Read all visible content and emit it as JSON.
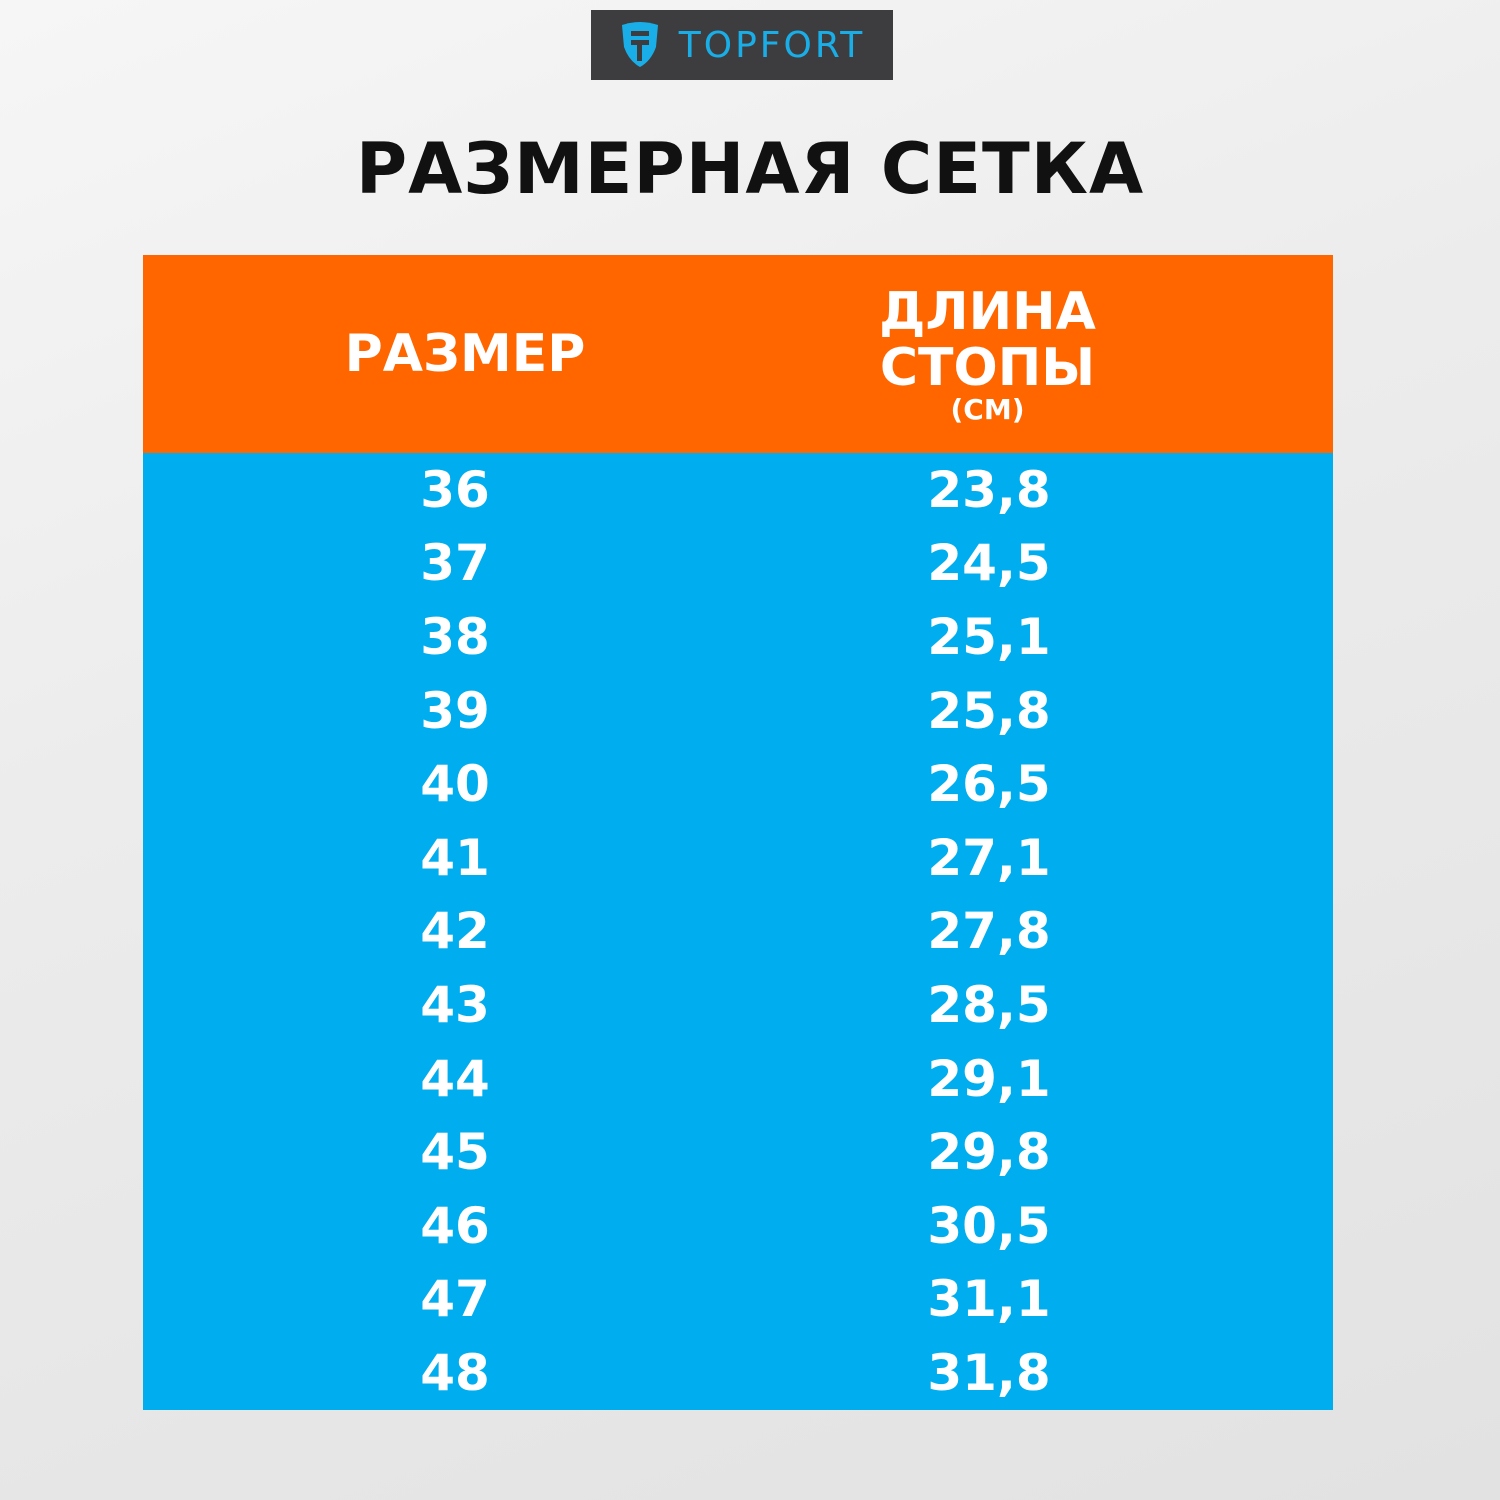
{
  "brand": {
    "name": "TOPFORT",
    "logo_bg": "#3d3d3f",
    "logo_color": "#1aaee8"
  },
  "title": "РАЗМЕРНАЯ СЕТКА",
  "table": {
    "header_color": "#ff6600",
    "body_color": "#00aeef",
    "headers": {
      "size": "РАЗМЕР",
      "length_line1": "ДЛИНА",
      "length_line2": "СТОПЫ",
      "length_unit": "(СМ)"
    },
    "rows": [
      {
        "size": "36",
        "length": "23,8"
      },
      {
        "size": "37",
        "length": "24,5"
      },
      {
        "size": "38",
        "length": "25,1"
      },
      {
        "size": "39",
        "length": "25,8"
      },
      {
        "size": "40",
        "length": "26,5"
      },
      {
        "size": "41",
        "length": "27,1"
      },
      {
        "size": "42",
        "length": "27,8"
      },
      {
        "size": "43",
        "length": "28,5"
      },
      {
        "size": "44",
        "length": "29,1"
      },
      {
        "size": "45",
        "length": "29,8"
      },
      {
        "size": "46",
        "length": "30,5"
      },
      {
        "size": "47",
        "length": "31,1"
      },
      {
        "size": "48",
        "length": "31,8"
      }
    ]
  }
}
